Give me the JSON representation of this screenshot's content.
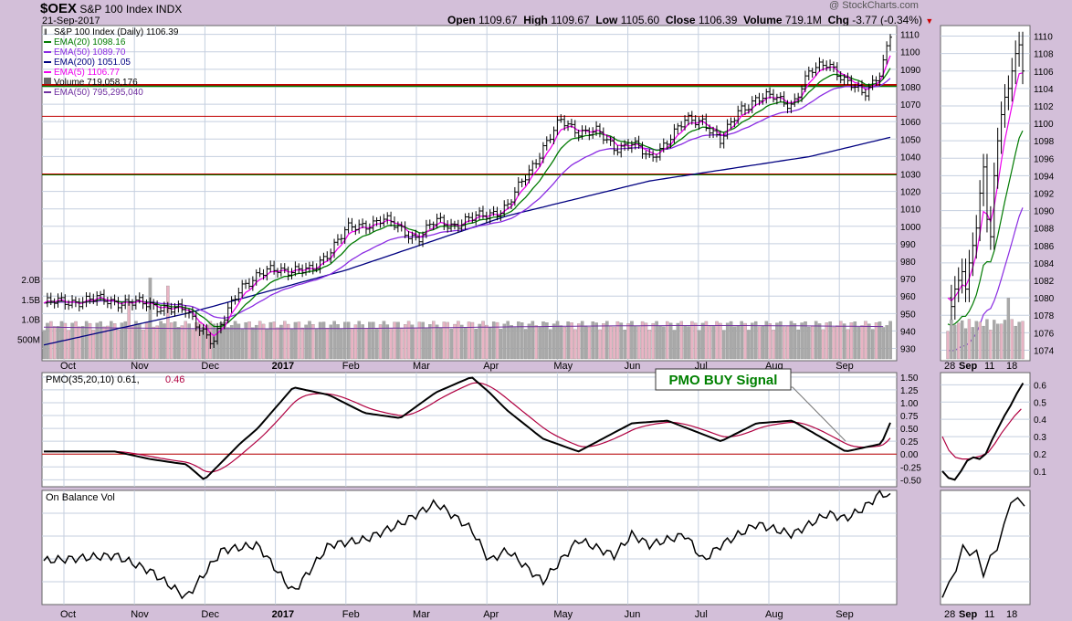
{
  "header": {
    "ticker": "$OEX",
    "name": "S&P 100 Index",
    "exchange": "INDX",
    "date": "21-Sep-2017",
    "watermark": "@ StockCharts.com",
    "quote": {
      "open_label": "Open",
      "open": "1109.67",
      "high_label": "High",
      "high": "1109.67",
      "low_label": "Low",
      "low": "1105.60",
      "close_label": "Close",
      "close": "1106.39",
      "volume_label": "Volume",
      "volume": "719.1M",
      "chg_label": "Chg",
      "chg": "-3.77 (-0.34%)",
      "chg_color": "#d00000"
    }
  },
  "legend": [
    {
      "text": "S&P 100 Index (Daily) 1106.39",
      "color": "#000000",
      "marker": "bars"
    },
    {
      "text": "EMA(20) 1098.16",
      "color": "#007a00",
      "marker": "line"
    },
    {
      "text": "EMA(50) 1089.70",
      "color": "#8a2be2",
      "marker": "line"
    },
    {
      "text": "EMA(200) 1051.05",
      "color": "#000080",
      "marker": "line"
    },
    {
      "text": "EMA(5) 1106.77",
      "color": "#ee00ee",
      "marker": "line"
    },
    {
      "text": "Volume 719,058,176",
      "color": "#000000",
      "marker": "volume"
    },
    {
      "text": "EMA(50) 795,295,040",
      "color": "#7030a0",
      "marker": "line"
    }
  ],
  "annotation": {
    "text": "PMO BUY Signal",
    "color": "#008000",
    "border": "#333333"
  },
  "colors": {
    "price": "#000000",
    "ema5": "#ee00ee",
    "ema20": "#007a00",
    "ema50": "#8a2be2",
    "ema200": "#000080",
    "vol_up": "#a9a9a9",
    "vol_down": "#e8b4c4",
    "vol_ema": "#7030a0",
    "pmo": "#000000",
    "pmo_signal": "#b00040",
    "hline_red": "#c00000",
    "hline_green": "#007a00",
    "grid": "#c5cfdf",
    "bg": "#d3bfd9"
  },
  "chart_data": [
    {
      "type": "line",
      "title": "S&P 100 Index (Daily)",
      "x_labels": [
        "Oct",
        "Nov",
        "Dec",
        "2017",
        "Feb",
        "Mar",
        "Apr",
        "May",
        "Jun",
        "Jul",
        "Aug",
        "Sep"
      ],
      "y_ticks": [
        930,
        940,
        950,
        960,
        970,
        980,
        990,
        1000,
        1010,
        1020,
        1030,
        1040,
        1050,
        1060,
        1070,
        1080,
        1090,
        1100,
        1110
      ],
      "ylim": [
        924,
        1114
      ],
      "volume_ticks": [
        "500M",
        "1.0B",
        "1.5B",
        "2.0B"
      ],
      "grid": true,
      "horizontal_lines": [
        {
          "value": 1081,
          "color": "red"
        },
        {
          "value": 1081,
          "color": "green"
        },
        {
          "value": 1063,
          "color": "red"
        },
        {
          "value": 1030,
          "color": "red"
        },
        {
          "value": 1030,
          "color": "green"
        }
      ],
      "series": [
        {
          "name": "S&P 100 Index",
          "x": [
            0,
            3,
            6,
            8,
            9,
            9.5,
            11,
            13,
            15,
            17,
            19,
            21,
            22,
            23,
            24,
            26,
            28,
            29,
            30,
            31,
            32,
            33,
            34,
            35,
            36,
            37,
            38,
            39,
            40,
            41,
            42,
            43,
            44,
            45,
            46,
            47,
            47.5
          ],
          "y": [
            956,
            958,
            955,
            951,
            940,
            933,
            966,
            976,
            974,
            998,
            1004,
            993,
            1003,
            1001,
            1004,
            1011,
            1045,
            1060,
            1055,
            1054,
            1045,
            1048,
            1038,
            1050,
            1060,
            1061,
            1048,
            1067,
            1073,
            1074,
            1070,
            1088,
            1095,
            1082,
            1076,
            1090,
            1109
          ],
          "ohlc_last": {
            "open": 1109.67,
            "high": 1109.67,
            "low": 1105.6,
            "close": 1106.39
          }
        },
        {
          "name": "EMA(5)",
          "last": 1106.77
        },
        {
          "name": "EMA(20)",
          "last": 1098.16
        },
        {
          "name": "EMA(50)",
          "last": 1089.7
        },
        {
          "name": "EMA(200)",
          "x": [
            0,
            8,
            17,
            26,
            34,
            43,
            47.5
          ],
          "y": [
            932,
            950,
            975,
            1006,
            1026,
            1040,
            1051
          ]
        }
      ],
      "volume": {
        "last": 719058176,
        "ema50_last": 795295040
      }
    },
    {
      "type": "line",
      "title": "PMO(35,20,10)",
      "y_ticks": [
        -0.5,
        -0.25,
        0.0,
        0.25,
        0.5,
        0.75,
        1.0,
        1.25,
        1.5
      ],
      "ylim": [
        -0.6,
        1.55
      ],
      "series": [
        {
          "name": "PMO",
          "last": 0.61,
          "x": [
            0,
            4,
            6,
            8,
            9,
            11,
            12,
            14,
            16,
            18,
            20,
            22,
            24,
            25,
            26,
            28,
            30,
            33,
            35,
            38,
            40,
            42,
            44,
            45,
            47,
            47.5
          ],
          "y": [
            0.05,
            0.05,
            -0.1,
            -0.2,
            -0.5,
            0.2,
            0.5,
            1.3,
            1.15,
            0.8,
            0.7,
            1.2,
            1.5,
            1.2,
            0.85,
            0.3,
            0.05,
            0.6,
            0.65,
            0.25,
            0.6,
            0.65,
            0.25,
            0.05,
            0.2,
            0.61
          ]
        },
        {
          "name": "Signal",
          "last": 0.46
        }
      ]
    },
    {
      "type": "line",
      "title": "On Balance Vol",
      "series": [
        {
          "name": "On Balance Vol",
          "x": [
            0,
            4,
            6,
            8,
            10,
            12,
            14,
            16,
            18,
            20,
            22,
            24,
            25,
            26,
            27,
            28,
            30,
            32,
            33,
            34,
            36,
            37,
            38,
            40,
            42,
            44,
            45,
            46,
            47,
            47.5
          ],
          "y": [
            0.4,
            0.45,
            0.3,
            0.05,
            0.5,
            0.55,
            0.1,
            0.55,
            0.6,
            0.75,
            0.95,
            0.7,
            0.4,
            0.5,
            0.35,
            0.2,
            0.6,
            0.45,
            0.65,
            0.55,
            0.65,
            0.4,
            0.55,
            0.75,
            0.65,
            0.85,
            0.8,
            0.9,
            1.05,
            1.0
          ]
        }
      ]
    }
  ],
  "inset": {
    "x_labels": [
      "28",
      "Sep",
      "11",
      "18"
    ],
    "price_ticks": [
      1074,
      1076,
      1078,
      1080,
      1082,
      1084,
      1086,
      1088,
      1090,
      1092,
      1094,
      1096,
      1098,
      1100,
      1102,
      1104,
      1106,
      1108,
      1110
    ],
    "pmo_ticks": [
      "0.1",
      "0.2",
      "0.3",
      "0.4",
      "0.5",
      "0.6"
    ]
  }
}
